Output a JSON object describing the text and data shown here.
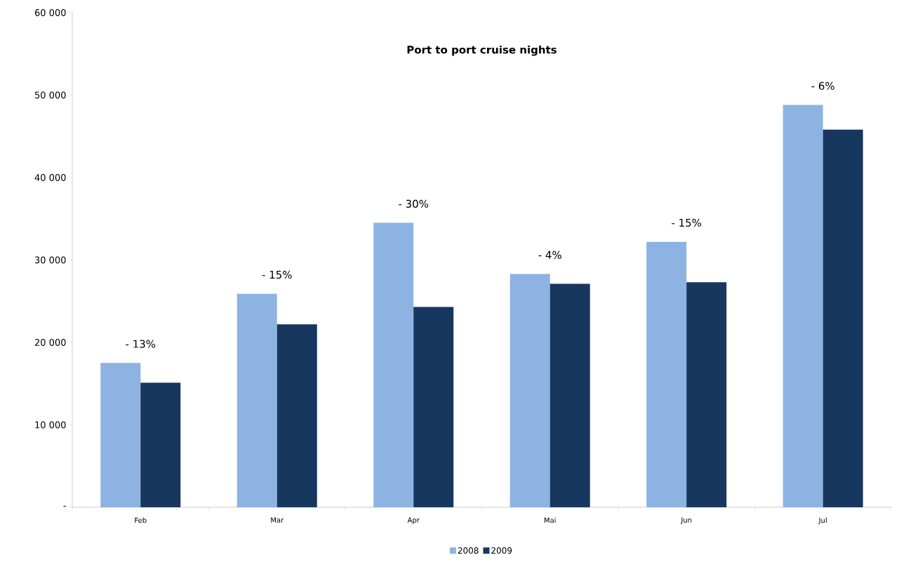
{
  "chart_data": {
    "type": "bar",
    "title": "Port to port cruise nights",
    "categories": [
      "Feb",
      "Mar",
      "Apr",
      "Mai",
      "Jun",
      "Jul"
    ],
    "series": [
      {
        "name": "2008",
        "color": "#8db3e2",
        "values": [
          17500,
          25900,
          34500,
          28300,
          32200,
          48800
        ]
      },
      {
        "name": "2009",
        "color": "#17375e",
        "values": [
          15100,
          22200,
          24300,
          27100,
          27300,
          45800
        ]
      }
    ],
    "ylim": [
      0,
      60000
    ],
    "yticks": [
      {
        "value": 0,
        "label": "-"
      },
      {
        "value": 10000,
        "label": "10 000"
      },
      {
        "value": 20000,
        "label": "20 000"
      },
      {
        "value": 30000,
        "label": "30 000"
      },
      {
        "value": 40000,
        "label": "40 000"
      },
      {
        "value": 50000,
        "label": "50 000"
      },
      {
        "value": 60000,
        "label": "60 000"
      }
    ],
    "annotations": [
      "- 13%",
      "- 15%",
      "- 30%",
      "- 4%",
      "- 15%",
      "- 6%"
    ],
    "legend": "bottom"
  }
}
